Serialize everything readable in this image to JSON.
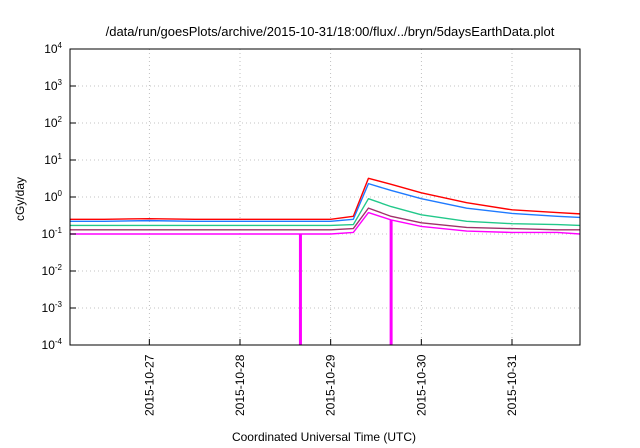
{
  "chart_data": {
    "type": "line",
    "title": "/data/run/goesPlots/archive/2015-10-31/18:00/flux/../bryn/5daysEarthData.plot",
    "xlabel": "Coordinated Universal Time (UTC)",
    "ylabel": "cGy/day",
    "yscale": "log",
    "grid": true,
    "ylim": [
      0.0001,
      10000
    ],
    "xlim": [
      "2015-10-26T03:00",
      "2015-10-31T18:00"
    ],
    "x_ticks": [
      "2015-10-27",
      "2015-10-28",
      "2015-10-29",
      "2015-10-30",
      "2015-10-31"
    ],
    "y_ticks": [
      {
        "base": "10",
        "exp": "4",
        "value": 10000
      },
      {
        "base": "10",
        "exp": "3",
        "value": 1000
      },
      {
        "base": "10",
        "exp": "2",
        "value": 100
      },
      {
        "base": "10",
        "exp": "1",
        "value": 10
      },
      {
        "base": "10",
        "exp": "0",
        "value": 1
      },
      {
        "base": "10",
        "exp": "-1",
        "value": 0.1
      },
      {
        "base": "10",
        "exp": "-2",
        "value": 0.01
      },
      {
        "base": "10",
        "exp": "-3",
        "value": 0.001
      },
      {
        "base": "10",
        "exp": "-4",
        "value": 0.0001
      }
    ],
    "x_points": [
      "2015-10-26T03:00",
      "2015-10-26T12:00",
      "2015-10-27T00:00",
      "2015-10-27T12:00",
      "2015-10-28T00:00",
      "2015-10-28T12:00",
      "2015-10-29T00:00",
      "2015-10-29T06:00",
      "2015-10-29T10:00",
      "2015-10-29T16:00",
      "2015-10-30T00:00",
      "2015-10-30T12:00",
      "2015-10-31T00:00",
      "2015-10-31T12:00",
      "2015-10-31T18:00"
    ],
    "series": [
      {
        "color": "#ff0000",
        "values": [
          0.25,
          0.25,
          0.26,
          0.25,
          0.25,
          0.25,
          0.25,
          0.3,
          3.2,
          2.2,
          1.3,
          0.7,
          0.45,
          0.38,
          0.35
        ]
      },
      {
        "color": "#1f7aff",
        "values": [
          0.22,
          0.22,
          0.23,
          0.22,
          0.22,
          0.22,
          0.22,
          0.25,
          2.3,
          1.5,
          0.9,
          0.5,
          0.36,
          0.3,
          0.28
        ]
      },
      {
        "color": "#22c88a",
        "values": [
          0.17,
          0.17,
          0.17,
          0.17,
          0.17,
          0.17,
          0.17,
          0.18,
          0.9,
          0.55,
          0.33,
          0.22,
          0.19,
          0.18,
          0.17
        ]
      },
      {
        "color": "#a0306a",
        "values": [
          0.13,
          0.13,
          0.13,
          0.13,
          0.13,
          0.13,
          0.13,
          0.14,
          0.5,
          0.3,
          0.2,
          0.15,
          0.14,
          0.13,
          0.13
        ]
      },
      {
        "color": "#ff00ff",
        "values": [
          0.1,
          0.1,
          0.1,
          0.1,
          0.1,
          0.1,
          0.1,
          0.11,
          0.38,
          0.24,
          0.16,
          0.12,
          0.11,
          0.11,
          0.1
        ]
      }
    ],
    "drops": [
      {
        "x": "2015-10-28T16:00",
        "color": "#ff00ff",
        "from": 0.1,
        "to": 0.0001
      },
      {
        "x": "2015-10-29T16:00",
        "color": "#ff00ff",
        "from": 0.24,
        "to": 0.0001
      }
    ]
  }
}
